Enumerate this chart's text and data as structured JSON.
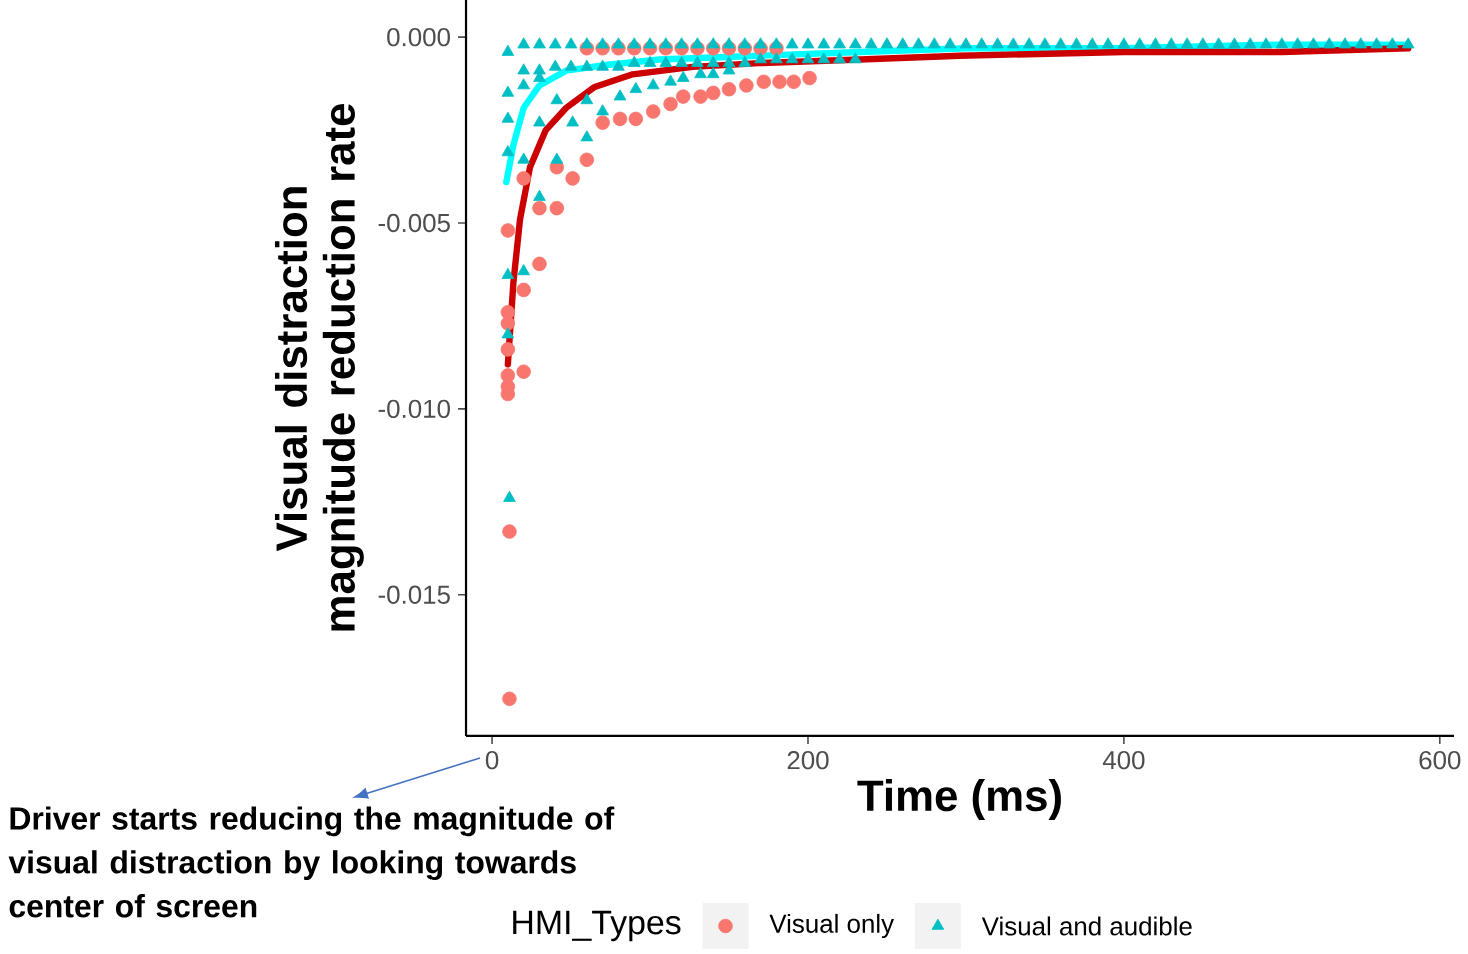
{
  "chart_data": {
    "type": "scatter",
    "xlabel": "Time (ms)",
    "ylabel": "Visual distraction magnitude reduction rate",
    "legend_title": "HMI_Types",
    "xlim": [
      -16.5,
      609
    ],
    "xticks": [
      0,
      200,
      400,
      600
    ],
    "ylim": [
      -0.0188,
      0.001
    ],
    "yticks": [
      {
        "value": 0,
        "label": "0.000"
      },
      {
        "value": -0.005,
        "label": "-0.005"
      },
      {
        "value": -0.01,
        "label": "-0.010"
      },
      {
        "value": -0.015,
        "label": "-0.015"
      }
    ],
    "legend": "bottom",
    "grid": false,
    "annotations": [
      "Driver starts reducing the magnitude of visual distraction by looking towards center of screen"
    ],
    "series": [
      {
        "name": "Visual only",
        "marker": "circle",
        "color": "#f8766d",
        "x": [
          10,
          10,
          10,
          10,
          10,
          10,
          10,
          11,
          11,
          20,
          20,
          20,
          30,
          30,
          41,
          41,
          51,
          60,
          70,
          81,
          91,
          102,
          113,
          121,
          132,
          140,
          150,
          161,
          172,
          182,
          191,
          201,
          60,
          70,
          80,
          90,
          100,
          110,
          120,
          130,
          140,
          150,
          160,
          170,
          180
        ],
        "values": [
          -0.0052,
          -0.0074,
          -0.0077,
          -0.0084,
          -0.0091,
          -0.0094,
          -0.0096,
          -0.0133,
          -0.0178,
          -0.0038,
          -0.0068,
          -0.009,
          -0.0061,
          -0.0046,
          -0.0046,
          -0.0035,
          -0.0038,
          -0.0033,
          -0.0023,
          -0.0022,
          -0.0022,
          -0.002,
          -0.0018,
          -0.0016,
          -0.0016,
          -0.0015,
          -0.0014,
          -0.0013,
          -0.0012,
          -0.0012,
          -0.0012,
          -0.0011,
          -0.0003,
          -0.0003,
          -0.0003,
          -0.0003,
          -0.0003,
          -0.0003,
          -0.0003,
          -0.0003,
          -0.0003,
          -0.0003,
          -0.0003,
          -0.0003,
          -0.0003
        ]
      },
      {
        "name": "Visual and audible",
        "marker": "triangle",
        "color": "#00bfc4",
        "x": [
          10,
          20,
          30,
          40,
          50,
          60,
          70,
          80,
          90,
          100,
          110,
          120,
          130,
          140,
          150,
          160,
          170,
          180,
          190,
          200,
          210,
          220,
          230,
          240,
          250,
          260,
          270,
          280,
          290,
          300,
          310,
          320,
          330,
          340,
          350,
          360,
          370,
          380,
          390,
          400,
          410,
          420,
          430,
          440,
          450,
          460,
          470,
          480,
          490,
          500,
          510,
          520,
          530,
          540,
          550,
          560,
          570,
          580,
          20,
          30,
          40,
          50,
          60,
          70,
          80,
          90,
          100,
          110,
          120,
          130,
          140,
          150,
          160,
          170,
          180,
          190,
          200,
          210,
          220,
          230,
          10,
          10,
          10,
          10,
          10,
          11,
          20,
          20,
          20,
          30,
          30,
          30,
          41,
          41,
          51,
          60,
          60,
          70,
          81,
          91,
          102,
          113,
          121,
          132,
          140,
          150
        ],
        "values": [
          -0.0004,
          -0.0002,
          -0.0002,
          -0.0002,
          -0.0002,
          -0.0002,
          -0.0002,
          -0.0002,
          -0.0002,
          -0.0002,
          -0.0002,
          -0.0002,
          -0.0002,
          -0.0002,
          -0.0002,
          -0.0002,
          -0.0002,
          -0.0002,
          -0.0002,
          -0.0002,
          -0.0002,
          -0.0002,
          -0.0002,
          -0.0002,
          -0.0002,
          -0.0002,
          -0.0002,
          -0.0002,
          -0.0002,
          -0.0002,
          -0.0002,
          -0.0002,
          -0.0002,
          -0.0002,
          -0.0002,
          -0.0002,
          -0.0002,
          -0.0002,
          -0.0002,
          -0.0002,
          -0.0002,
          -0.0002,
          -0.0002,
          -0.0002,
          -0.0002,
          -0.0002,
          -0.0002,
          -0.0002,
          -0.0002,
          -0.0002,
          -0.0002,
          -0.0002,
          -0.0002,
          -0.0002,
          -0.0002,
          -0.0002,
          -0.0002,
          -0.0002,
          -0.0009,
          -0.0009,
          -0.0008,
          -0.0008,
          -0.0008,
          -0.0008,
          -0.0008,
          -0.0007,
          -0.0007,
          -0.0007,
          -0.0007,
          -0.0007,
          -0.0007,
          -0.0007,
          -0.0007,
          -0.0006,
          -0.0006,
          -0.0006,
          -0.0006,
          -0.0006,
          -0.0006,
          -0.0006,
          -0.0015,
          -0.0022,
          -0.0031,
          -0.0064,
          -0.008,
          -0.0124,
          -0.0063,
          -0.0033,
          -0.0013,
          -0.0023,
          -0.0043,
          -0.0011,
          -0.0033,
          -0.0017,
          -0.0023,
          -0.0027,
          -0.0017,
          -0.002,
          -0.0016,
          -0.0014,
          -0.0013,
          -0.0012,
          -0.0011,
          -0.001,
          -0.001,
          -0.0009
        ]
      },
      {
        "type": "line",
        "color": "#00ffff",
        "x": [
          9,
          13.5,
          20,
          30,
          47,
          72,
          106,
          169,
          233,
          300,
          400,
          500,
          580
        ],
        "values": [
          -0.0039,
          -0.0029,
          -0.0019,
          -0.0013,
          -0.0009,
          -0.00075,
          -0.0006,
          -0.0005,
          -0.0004,
          -0.0003,
          -0.0003,
          -0.0002,
          -0.0002
        ]
      },
      {
        "type": "line",
        "color": "#cc0000",
        "x": [
          10,
          13.5,
          17.7,
          24,
          34,
          47,
          64.5,
          89,
          127,
          169,
          233,
          296,
          400,
          500,
          580
        ],
        "values": [
          -0.0088,
          -0.0066,
          -0.0049,
          -0.0035,
          -0.0025,
          -0.0019,
          -0.00135,
          -0.001,
          -0.0008,
          -0.0007,
          -0.0006,
          -0.0005,
          -0.0004,
          -0.0004,
          -0.0003
        ]
      }
    ]
  }
}
